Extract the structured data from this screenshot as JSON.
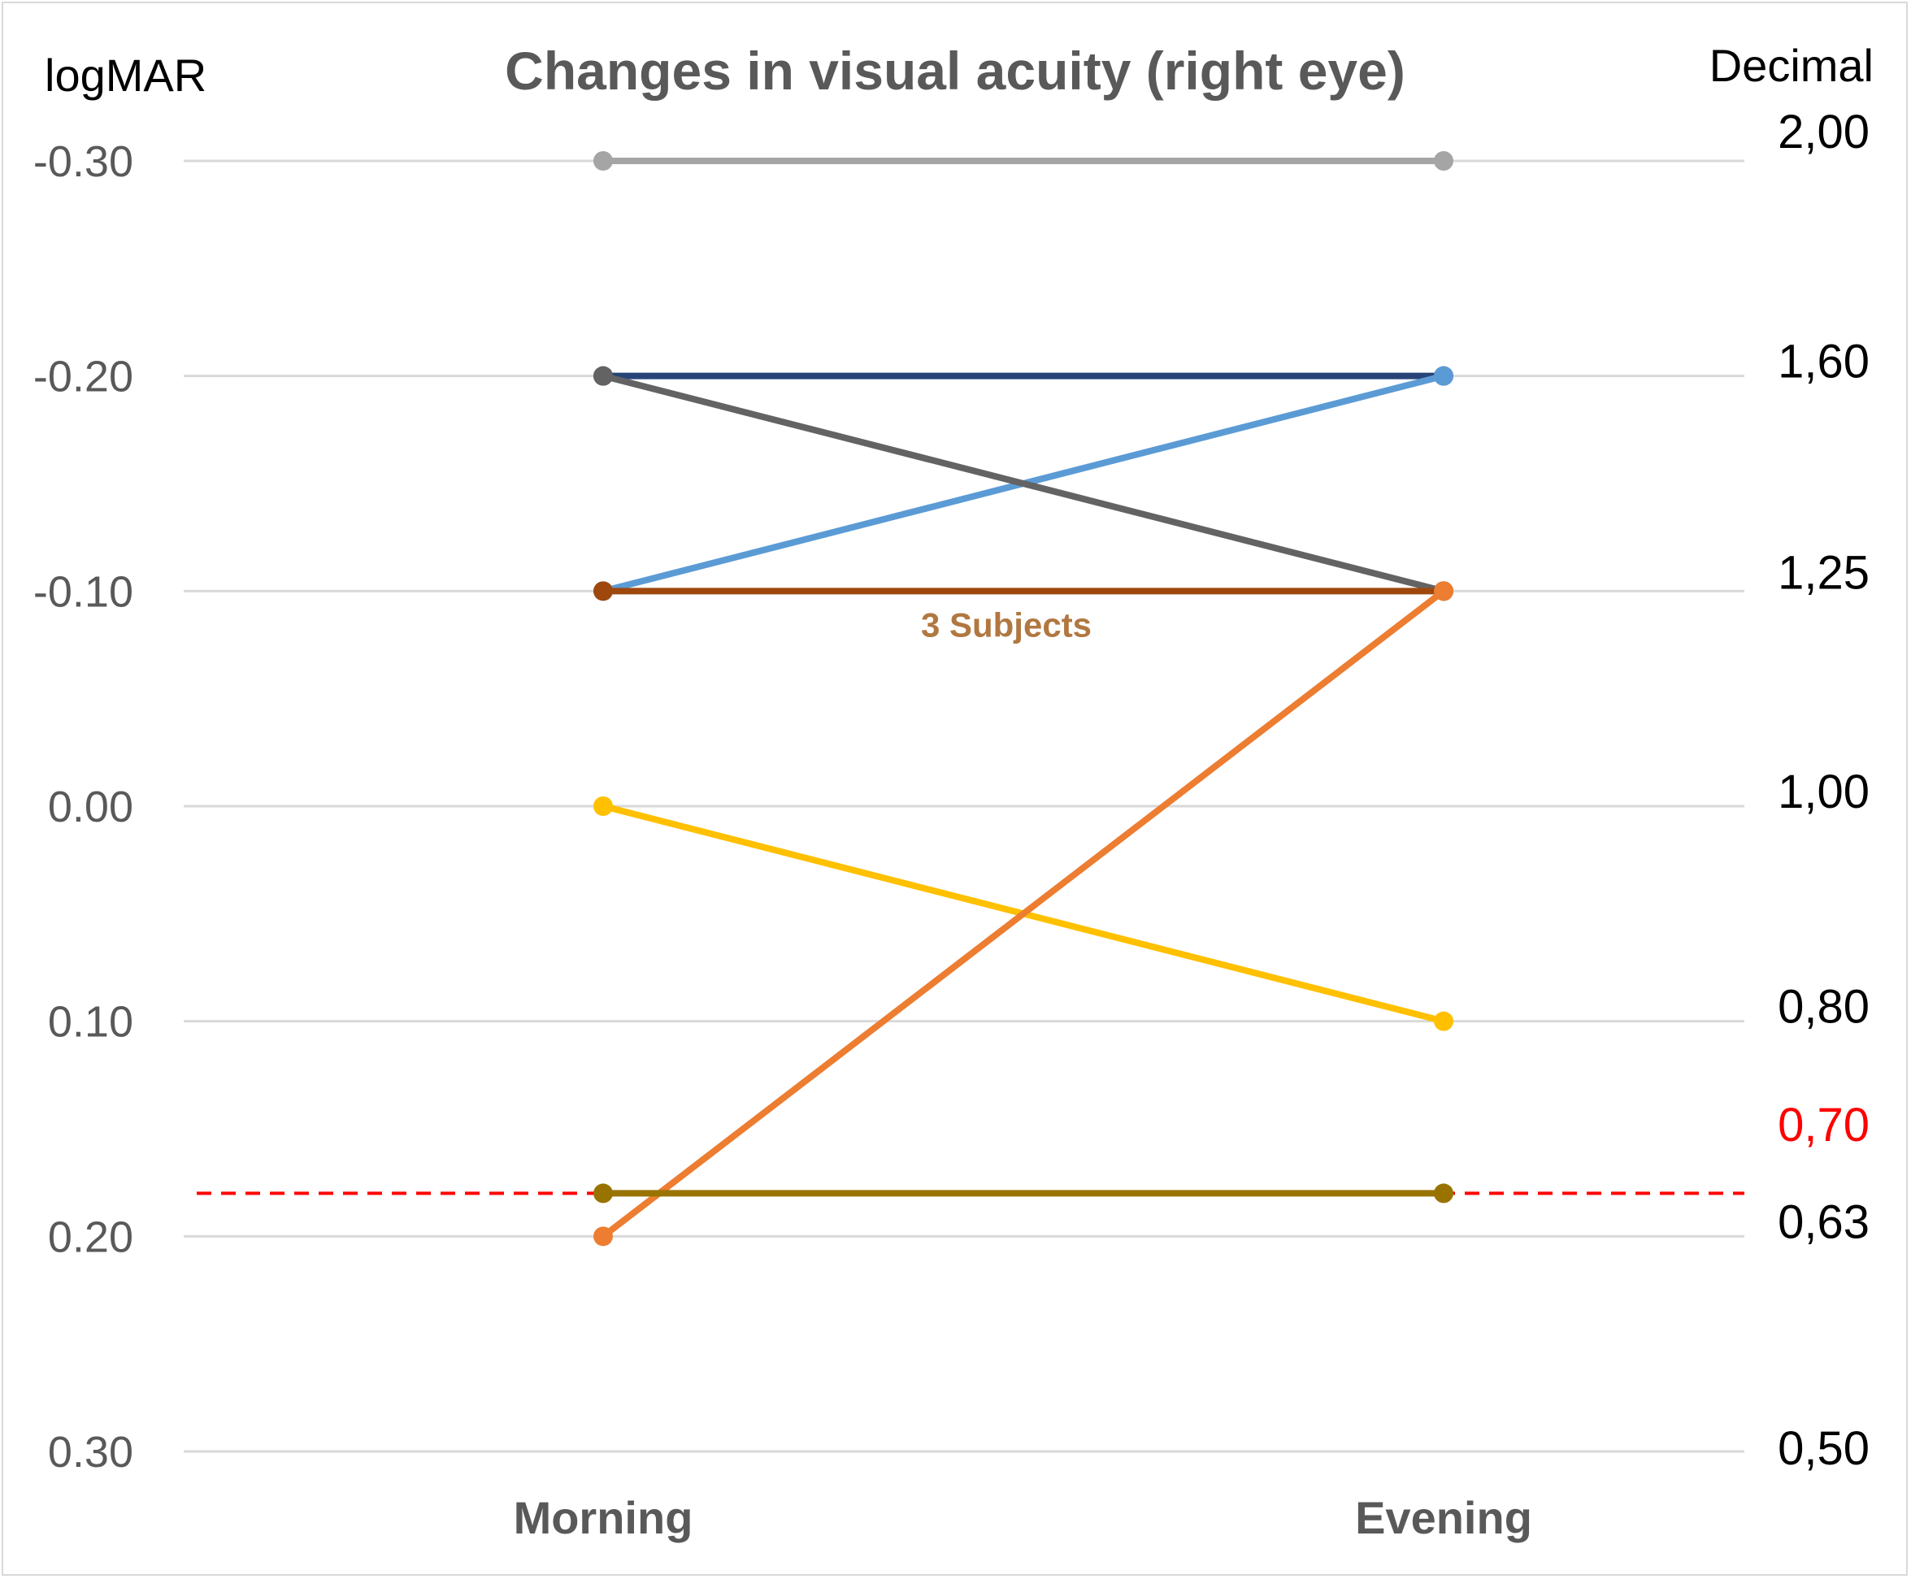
{
  "chart_data": {
    "type": "line",
    "title": "Changes in visual acuity (right eye)",
    "ylabel": "logMAR",
    "ylabel_right": "Decimal",
    "categories": [
      "Morning",
      "Evening"
    ],
    "ylim": [
      0.3,
      -0.3
    ],
    "y_reversed": true,
    "grid": true,
    "yticks": [
      {
        "value": -0.3,
        "label": "-0.30"
      },
      {
        "value": -0.2,
        "label": "-0.20"
      },
      {
        "value": -0.1,
        "label": "-0.10"
      },
      {
        "value": 0.0,
        "label": "0.00"
      },
      {
        "value": 0.1,
        "label": "0.10"
      },
      {
        "value": 0.2,
        "label": "0.20"
      },
      {
        "value": 0.3,
        "label": "0.30"
      }
    ],
    "decimal_ticks": [
      {
        "value": -0.3,
        "label": "2,00",
        "color": "#000000"
      },
      {
        "value": -0.2,
        "label": "1,60",
        "color": "#000000"
      },
      {
        "value": -0.1,
        "label": "1,25",
        "color": "#000000"
      },
      {
        "value": 0.0,
        "label": "1,00",
        "color": "#000000"
      },
      {
        "value": 0.1,
        "label": "0,80",
        "color": "#000000"
      },
      {
        "value": 0.155,
        "label": "0,70",
        "color": "#ff0000"
      },
      {
        "value": 0.2,
        "label": "0,63",
        "color": "#000000"
      },
      {
        "value": 0.3,
        "label": "0,50",
        "color": "#000000"
      }
    ],
    "reference_line": {
      "value": 0.18,
      "color": "#ff0000",
      "style": "dashed"
    },
    "series": [
      {
        "values": [
          -0.3,
          -0.3
        ],
        "color": "#a5a5a5"
      },
      {
        "values": [
          -0.2,
          -0.2
        ],
        "color": "#264478"
      },
      {
        "values": [
          -0.1,
          -0.2
        ],
        "color": "#5b9bd5"
      },
      {
        "values": [
          -0.2,
          -0.1
        ],
        "color": "#636363"
      },
      {
        "values": [
          -0.1,
          -0.1
        ],
        "color": "#9e480e"
      },
      {
        "values": [
          0.0,
          0.1
        ],
        "color": "#ffc000"
      },
      {
        "values": [
          0.2,
          -0.1
        ],
        "color": "#ed7d31"
      },
      {
        "values": [
          0.18,
          0.18
        ],
        "color": "#997300"
      }
    ],
    "annotations": [
      {
        "text": "3 Subjects",
        "color": "#b07840"
      }
    ]
  }
}
